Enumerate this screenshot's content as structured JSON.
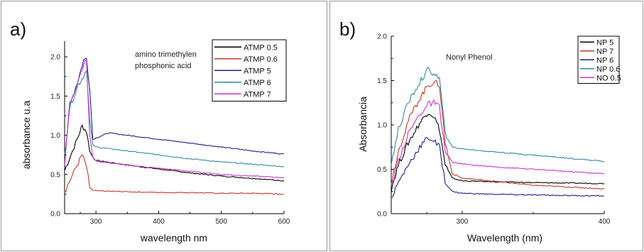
{
  "chart_data": [
    {
      "type": "line",
      "panel_label": "a)",
      "annotation": [
        "amino trimethylen",
        "phosphonic acid"
      ],
      "xlabel": "wavelength nm",
      "ylabel": "absorbance u.a",
      "xlim": [
        250,
        600
      ],
      "ylim": [
        0,
        2.2
      ],
      "xticks": [
        300,
        400,
        500,
        600
      ],
      "yticks": [
        0.0,
        0.5,
        1.0,
        1.5,
        2.0
      ],
      "xtick_labels": [
        "300",
        "400",
        "500",
        "600"
      ],
      "ytick_labels": [
        "0.0",
        "0.5",
        "1.0",
        "1.5",
        "2.0"
      ],
      "legend_position": "top-right",
      "grid": false,
      "series": [
        {
          "name": "ATMP 0.5",
          "color": "#000000",
          "x": [
            250,
            260,
            270,
            278,
            285,
            290,
            295,
            300,
            350,
            400,
            450,
            500,
            550,
            600
          ],
          "y": [
            0.55,
            0.75,
            0.95,
            1.12,
            1.05,
            0.8,
            0.72,
            0.68,
            0.62,
            0.57,
            0.52,
            0.48,
            0.45,
            0.42
          ]
        },
        {
          "name": "ATMP 0.6",
          "color": "#c0392b",
          "x": [
            250,
            260,
            270,
            278,
            285,
            290,
            295,
            300,
            350,
            400,
            450,
            500,
            550,
            600
          ],
          "y": [
            0.28,
            0.45,
            0.62,
            0.75,
            0.6,
            0.33,
            0.3,
            0.29,
            0.28,
            0.27,
            0.27,
            0.26,
            0.26,
            0.25
          ]
        },
        {
          "name": "ATMP 5",
          "color": "#1f1f8f",
          "x": [
            250,
            258,
            265,
            272,
            280,
            285,
            290,
            295,
            305,
            320,
            350,
            400,
            450,
            500,
            550,
            600
          ],
          "y": [
            0.6,
            1.4,
            1.55,
            1.72,
            1.95,
            1.98,
            1.6,
            0.95,
            0.98,
            1.03,
            1.0,
            0.95,
            0.9,
            0.85,
            0.8,
            0.76
          ]
        },
        {
          "name": "ATMP 6",
          "color": "#2e8b9a",
          "x": [
            250,
            258,
            265,
            272,
            280,
            285,
            290,
            295,
            300,
            350,
            400,
            450,
            500,
            550,
            600
          ],
          "y": [
            0.75,
            1.35,
            1.5,
            1.65,
            1.75,
            1.85,
            1.2,
            0.88,
            0.85,
            0.8,
            0.75,
            0.7,
            0.66,
            0.63,
            0.6
          ]
        },
        {
          "name": "ATMP 7",
          "color": "#cc33cc",
          "x": [
            250,
            258,
            265,
            272,
            280,
            285,
            290,
            295,
            300,
            350,
            400,
            450,
            500,
            550,
            600
          ],
          "y": [
            0.62,
            1.4,
            1.55,
            1.72,
            1.9,
            1.95,
            1.0,
            0.72,
            0.67,
            0.62,
            0.58,
            0.54,
            0.5,
            0.48,
            0.46
          ]
        }
      ]
    },
    {
      "type": "line",
      "panel_label": "b)",
      "annotation": [
        "Nonyl Phenol"
      ],
      "xlabel": "Wavelength (nm)",
      "ylabel": "Absorbancia",
      "xlim": [
        250,
        400
      ],
      "ylim": [
        0,
        2.0
      ],
      "xticks": [
        300,
        400
      ],
      "yticks": [
        0.0,
        0.5,
        1.0,
        1.5,
        2.0
      ],
      "xtick_labels": [
        "300",
        "400"
      ],
      "ytick_labels": [
        "0.0",
        "0.5",
        "1.0",
        "1.5",
        "2.0"
      ],
      "legend_position": "top-right",
      "grid": false,
      "series": [
        {
          "name": "NP 5",
          "color": "#000000",
          "x": [
            250,
            255,
            262,
            270,
            276,
            280,
            284,
            288,
            293,
            300,
            320,
            350,
            400
          ],
          "y": [
            0.28,
            0.55,
            0.8,
            1.02,
            1.15,
            1.1,
            0.95,
            0.55,
            0.4,
            0.37,
            0.36,
            0.35,
            0.34
          ]
        },
        {
          "name": "NP 7",
          "color": "#c0392b",
          "x": [
            250,
            255,
            262,
            270,
            276,
            280,
            284,
            288,
            293,
            300,
            320,
            350,
            400
          ],
          "y": [
            0.35,
            0.7,
            1.05,
            1.3,
            1.45,
            1.48,
            1.45,
            0.8,
            0.45,
            0.4,
            0.37,
            0.32,
            0.28
          ]
        },
        {
          "name": "NP 6",
          "color": "#1f1f8f",
          "x": [
            250,
            255,
            262,
            270,
            276,
            280,
            284,
            288,
            293,
            300,
            320,
            350,
            400
          ],
          "y": [
            0.18,
            0.35,
            0.55,
            0.75,
            0.86,
            0.82,
            0.75,
            0.35,
            0.25,
            0.23,
            0.22,
            0.21,
            0.2
          ]
        },
        {
          "name": "NP 0.6",
          "color": "#2e8b9a",
          "x": [
            250,
            255,
            262,
            270,
            276,
            280,
            284,
            288,
            293,
            300,
            320,
            350,
            400
          ],
          "y": [
            0.55,
            0.95,
            1.25,
            1.48,
            1.62,
            1.58,
            1.52,
            0.9,
            0.75,
            0.73,
            0.7,
            0.66,
            0.59
          ]
        },
        {
          "name": "NO 0.5",
          "color": "#cc33cc",
          "x": [
            250,
            255,
            262,
            270,
            276,
            280,
            284,
            288,
            293,
            300,
            320,
            350,
            400
          ],
          "y": [
            0.3,
            0.6,
            0.9,
            1.12,
            1.23,
            1.25,
            1.2,
            0.7,
            0.58,
            0.56,
            0.53,
            0.5,
            0.45
          ]
        }
      ]
    }
  ]
}
